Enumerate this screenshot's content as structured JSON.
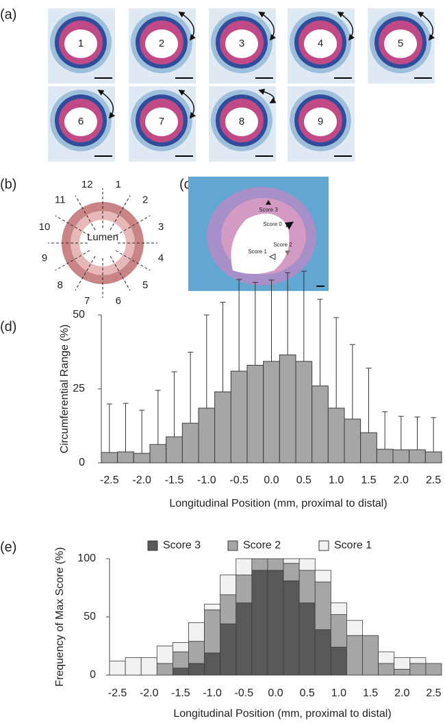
{
  "figure": {
    "panel_labels": [
      "(a)",
      "(b)",
      "(c)",
      "(d)",
      "(e)"
    ],
    "a": {
      "section_labels": [
        "1",
        "2",
        "3",
        "4",
        "5",
        "6",
        "7",
        "8",
        "9"
      ]
    },
    "b": {
      "clock_labels": [
        "1",
        "2",
        "3",
        "4",
        "5",
        "6",
        "7",
        "8",
        "9",
        "10",
        "11",
        "12"
      ],
      "center_label": "Lumen"
    },
    "c": {
      "score_labels": [
        "Score 3",
        "Score 0",
        "Score 2",
        "Score 1"
      ]
    }
  },
  "chart_data": [
    {
      "type": "bar",
      "x": [
        -2.5,
        -2.25,
        -2.0,
        -1.75,
        -1.5,
        -1.25,
        -1.0,
        -0.75,
        -0.5,
        -0.25,
        0.0,
        0.25,
        0.5,
        0.75,
        1.0,
        1.25,
        1.5,
        1.75,
        2.0,
        2.25,
        2.5
      ],
      "values": [
        3.5,
        3.7,
        3.2,
        6.2,
        8.8,
        13.4,
        18.5,
        24,
        31,
        33,
        34.3,
        36.5,
        34.3,
        26,
        18.5,
        14.8,
        10.2,
        4.6,
        4.4,
        4.4,
        3.7
      ],
      "errors": [
        16.4,
        16.4,
        14.6,
        18.3,
        22,
        24,
        31.5,
        30.3,
        31,
        28,
        27.5,
        27.8,
        30.5,
        29.3,
        30.6,
        25.2,
        21.8,
        12.7,
        11.3,
        11.1,
        11.6
      ],
      "color": "#a6a6a6",
      "edgecolor": "#3a3a3a",
      "xlim": [
        -2.625,
        2.625
      ],
      "xticks": [
        -2.5,
        {
          "value": -2,
          "label": "-2.0"
        },
        -1.5,
        {
          "value": -1,
          "label": "-1.0"
        },
        -0.5,
        {
          "value": 0,
          "label": "0.0"
        },
        0.5,
        {
          "value": 1,
          "label": "1.0"
        },
        1.5,
        {
          "value": 2,
          "label": "2.0"
        },
        2.5
      ],
      "ylim": [
        0,
        50
      ],
      "yticks": [
        0,
        25,
        50
      ],
      "xlabel": "Longitudinal Position (mm, proximal to distal)",
      "ylabel": "Circumferential Range (%)"
    },
    {
      "type": "stacked_bar",
      "x": [
        -2.5,
        -2.25,
        -2.0,
        -1.75,
        -1.5,
        -1.25,
        -1.0,
        -0.75,
        -0.5,
        -0.25,
        0.0,
        0.25,
        0.5,
        0.75,
        1.0,
        1.25,
        1.5,
        1.75,
        2.0,
        2.25,
        2.5
      ],
      "series": [
        {
          "name": "Score 3",
          "color": "#595959",
          "values": [
            0,
            0,
            0,
            0,
            6,
            10,
            19,
            44,
            62,
            90,
            90,
            81,
            62,
            39,
            24,
            0,
            0,
            0,
            0,
            0,
            0
          ]
        },
        {
          "name": "Score 2",
          "color": "#a6a6a6",
          "values": [
            0,
            0,
            0,
            10,
            14,
            19,
            37,
            25,
            24,
            10,
            10,
            15,
            28,
            41,
            28,
            34,
            34,
            10,
            5,
            10,
            10
          ]
        },
        {
          "name": "Score 1",
          "color": "#f2f2f2",
          "values": [
            12,
            15,
            15,
            15,
            8,
            16,
            5,
            17,
            14,
            0,
            0,
            4,
            10,
            10,
            10,
            13,
            0,
            10,
            10,
            5,
            0
          ]
        }
      ],
      "edgecolor": "#3a3a3a",
      "xlim": [
        -2.625,
        2.625
      ],
      "xticks": [
        -2.5,
        {
          "value": -2,
          "label": "-2.0"
        },
        -1.5,
        {
          "value": -1,
          "label": "-1.0"
        },
        -0.5,
        {
          "value": 0,
          "label": "0.0"
        },
        0.5,
        {
          "value": 1,
          "label": "1.0"
        },
        1.5,
        {
          "value": 2,
          "label": "2.0"
        },
        2.5
      ],
      "ylim": [
        0,
        100
      ],
      "yticks": [
        0,
        50,
        100
      ],
      "xlabel": "Longitudinal Position (mm, proximal to distal)",
      "ylabel": "Frequency of Max Score (%)",
      "legend": "top"
    }
  ]
}
